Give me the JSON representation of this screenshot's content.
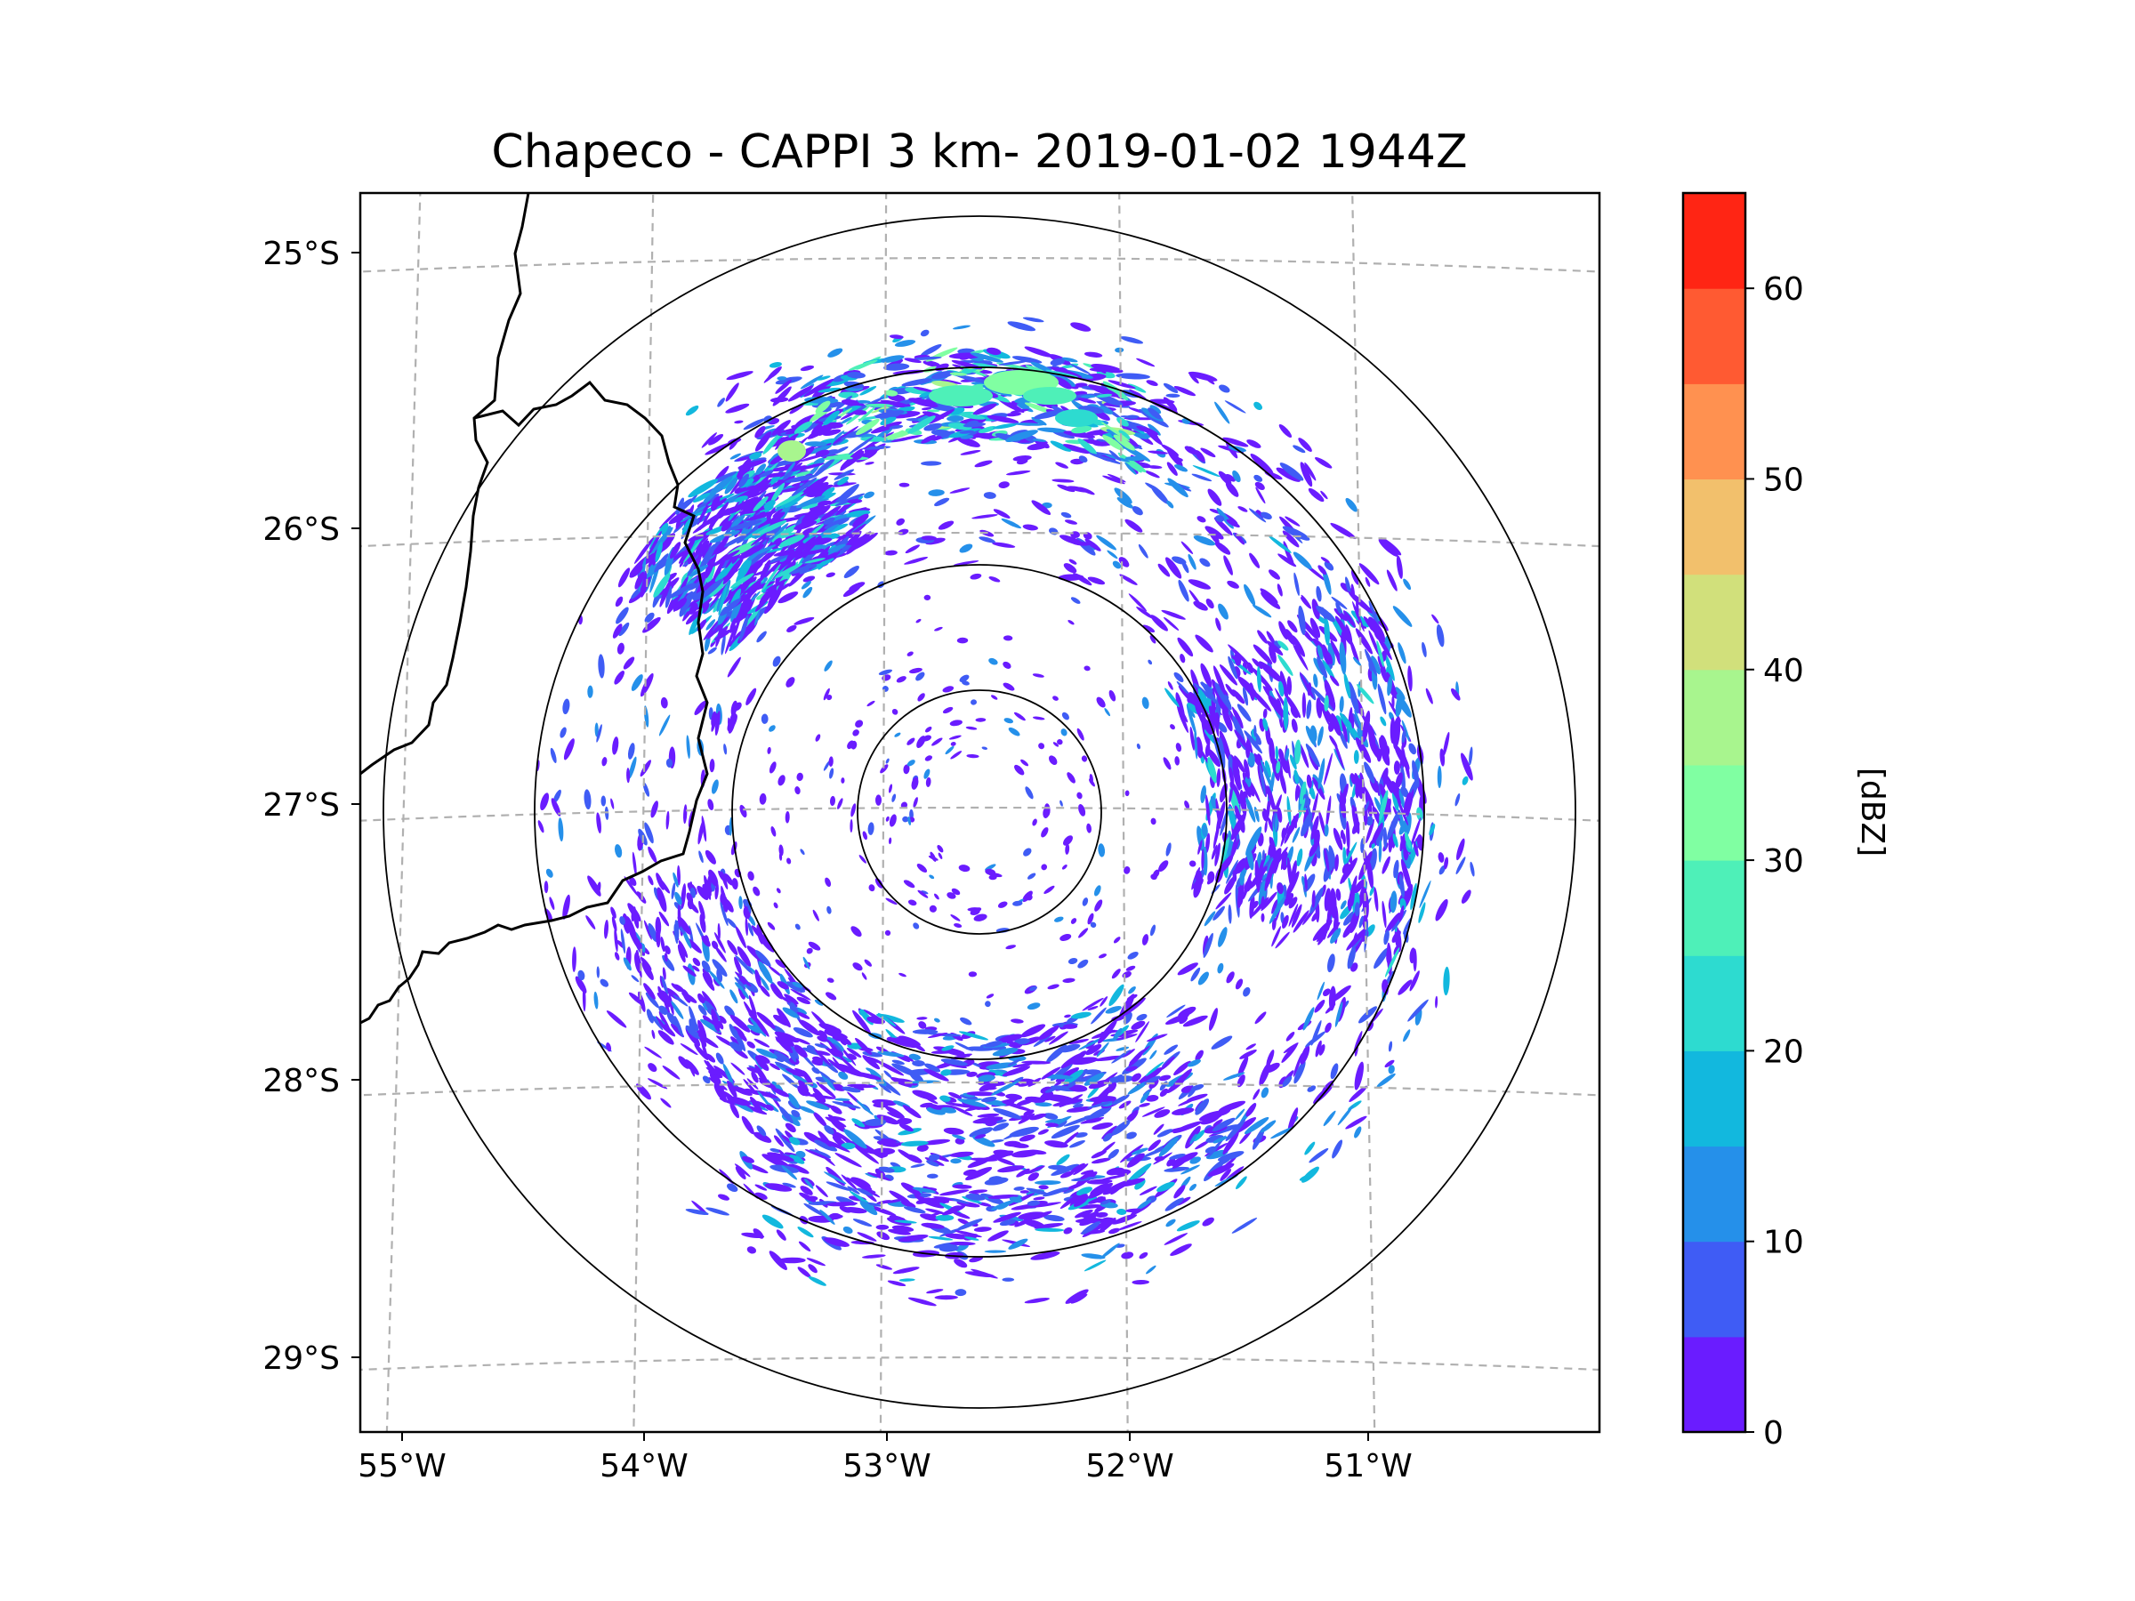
{
  "chart_data": {
    "type": "heatmap",
    "title": "Chapeco - CAPPI 3 km- 2019-01-02 1944Z",
    "subtitle_kind": "radar reflectivity map",
    "radar_center": {
      "lon": -52.6,
      "lat": -27.05
    },
    "xlabel": "",
    "ylabel": "",
    "x_ticks": [
      "55°W",
      "54°W",
      "53°W",
      "52°W",
      "51°W"
    ],
    "x_tick_values": [
      -55,
      -54,
      -53,
      -52,
      -51
    ],
    "y_ticks": [
      "25°S",
      "26°S",
      "27°S",
      "28°S",
      "29°S"
    ],
    "y_tick_values": [
      -25,
      -26,
      -27,
      -28,
      -29
    ],
    "xlim": [
      -55.2,
      -50.05
    ],
    "ylim": [
      -29.3,
      -24.8
    ],
    "range_rings_deg": [
      0.5,
      0.9,
      1.8,
      2.45
    ],
    "grid": true,
    "colorbar": {
      "label": "[dBZ]",
      "min": 0,
      "max": 65,
      "tick_labels": [
        "0",
        "10",
        "20",
        "30",
        "40",
        "50",
        "60"
      ],
      "tick_values": [
        0,
        10,
        20,
        30,
        40,
        50,
        60
      ],
      "levels": [
        0,
        5,
        10,
        15,
        20,
        25,
        30,
        35,
        40,
        45,
        50,
        55,
        60,
        65
      ],
      "colors": [
        "#6a1cff",
        "#3f5cf5",
        "#2590ea",
        "#12b8de",
        "#2ddbd0",
        "#4ef0b8",
        "#80ffa2",
        "#a8f58e",
        "#d1e07b",
        "#f2c06c",
        "#ff9150",
        "#ff5a32",
        "#ff2514"
      ]
    },
    "echo_regions": [
      {
        "name": "northwest band",
        "lon": -53.9,
        "lat": -26.2,
        "dbz_range": [
          0,
          25
        ]
      },
      {
        "name": "north arc",
        "lon": -52.6,
        "lat": -25.6,
        "dbz_range": [
          5,
          35
        ]
      },
      {
        "name": "east cluster",
        "lon": -51.4,
        "lat": -26.8,
        "dbz_range": [
          0,
          20
        ]
      },
      {
        "name": "south arc",
        "lon": -52.4,
        "lat": -28.1,
        "dbz_range": [
          0,
          15
        ]
      },
      {
        "name": "west scatter",
        "lon": -53.9,
        "lat": -27.5,
        "dbz_range": [
          0,
          10
        ]
      }
    ]
  },
  "colors": {
    "border": "#000000",
    "grid": "#b0b0b0",
    "ring": "#000000"
  }
}
